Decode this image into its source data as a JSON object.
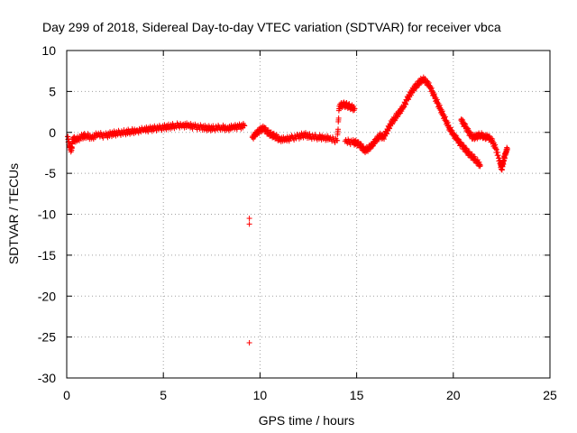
{
  "chart_data": {
    "type": "scatter",
    "title": "Day 299 of 2018, Sidereal Day-to-day VTEC variation (SDTVAR) for receiver vbca",
    "xlabel": "GPS time / hours",
    "ylabel": "SDTVAR / TECUs",
    "xlim": [
      0,
      25
    ],
    "ylim": [
      -30,
      10
    ],
    "x_ticks": [
      0,
      5,
      10,
      15,
      20,
      25
    ],
    "y_ticks": [
      10,
      5,
      0,
      -5,
      -10,
      -15,
      -20,
      -25,
      -30
    ],
    "grid": true,
    "marker": "+",
    "series_color": "#ff0000",
    "series": [
      {
        "name": "SDTVAR",
        "points": [
          [
            0.05,
            -0.5
          ],
          [
            0.15,
            -1.8
          ],
          [
            0.25,
            -2.2
          ],
          [
            0.3,
            -0.8
          ],
          [
            0.5,
            -0.9
          ],
          [
            0.8,
            -0.5
          ],
          [
            1.0,
            -0.4
          ],
          [
            1.3,
            -0.6
          ],
          [
            1.6,
            -0.3
          ],
          [
            2.0,
            -0.4
          ],
          [
            2.3,
            -0.2
          ],
          [
            2.6,
            -0.1
          ],
          [
            3.0,
            0.0
          ],
          [
            3.3,
            0.1
          ],
          [
            3.6,
            0.2
          ],
          [
            4.0,
            0.3
          ],
          [
            4.3,
            0.4
          ],
          [
            4.6,
            0.5
          ],
          [
            5.0,
            0.6
          ],
          [
            5.3,
            0.7
          ],
          [
            5.6,
            0.8
          ],
          [
            6.0,
            0.9
          ],
          [
            6.3,
            0.8
          ],
          [
            6.6,
            0.7
          ],
          [
            7.0,
            0.6
          ],
          [
            7.3,
            0.5
          ],
          [
            7.6,
            0.5
          ],
          [
            8.0,
            0.6
          ],
          [
            8.3,
            0.5
          ],
          [
            8.6,
            0.6
          ],
          [
            8.9,
            0.7
          ],
          [
            9.2,
            0.8
          ],
          [
            9.45,
            -10.5
          ],
          [
            9.45,
            -11.2
          ],
          [
            9.45,
            -25.7
          ],
          [
            9.6,
            -0.6
          ],
          [
            9.8,
            -0.2
          ],
          [
            10.0,
            0.3
          ],
          [
            10.2,
            0.5
          ],
          [
            10.4,
            0.0
          ],
          [
            10.6,
            -0.3
          ],
          [
            10.8,
            -0.5
          ],
          [
            11.0,
            -0.8
          ],
          [
            11.3,
            -0.9
          ],
          [
            11.6,
            -0.7
          ],
          [
            12.0,
            -0.5
          ],
          [
            12.3,
            -0.3
          ],
          [
            12.6,
            -0.5
          ],
          [
            13.0,
            -0.6
          ],
          [
            13.3,
            -0.6
          ],
          [
            13.6,
            -0.8
          ],
          [
            14.0,
            -1.0
          ],
          [
            14.1,
            3.2
          ],
          [
            14.3,
            3.4
          ],
          [
            14.5,
            3.3
          ],
          [
            14.7,
            3.1
          ],
          [
            14.9,
            2.9
          ],
          [
            14.4,
            -1.1
          ],
          [
            14.8,
            -1.2
          ],
          [
            15.0,
            -1.3
          ],
          [
            15.2,
            -1.6
          ],
          [
            15.4,
            -2.2
          ],
          [
            15.6,
            -2.0
          ],
          [
            15.8,
            -1.5
          ],
          [
            16.0,
            -1.0
          ],
          [
            16.2,
            -0.4
          ],
          [
            16.4,
            -0.6
          ],
          [
            16.6,
            0.3
          ],
          [
            16.8,
            1.2
          ],
          [
            17.0,
            1.8
          ],
          [
            17.2,
            2.5
          ],
          [
            17.4,
            3.0
          ],
          [
            17.6,
            4.0
          ],
          [
            17.8,
            4.8
          ],
          [
            18.0,
            5.5
          ],
          [
            18.2,
            6.0
          ],
          [
            18.4,
            6.5
          ],
          [
            18.6,
            6.3
          ],
          [
            18.8,
            5.5
          ],
          [
            19.0,
            4.5
          ],
          [
            19.2,
            3.5
          ],
          [
            19.4,
            2.5
          ],
          [
            19.6,
            1.5
          ],
          [
            19.8,
            0.5
          ],
          [
            20.0,
            -0.2
          ],
          [
            20.2,
            -0.9
          ],
          [
            20.4,
            -1.5
          ],
          [
            20.6,
            -2.0
          ],
          [
            20.8,
            -2.6
          ],
          [
            21.0,
            -3.0
          ],
          [
            21.2,
            -3.5
          ],
          [
            21.4,
            -4.0
          ],
          [
            20.4,
            1.5
          ],
          [
            20.6,
            0.8
          ],
          [
            20.8,
            0.0
          ],
          [
            21.0,
            -0.6
          ],
          [
            21.2,
            -0.5
          ],
          [
            21.4,
            -0.3
          ],
          [
            21.6,
            -0.5
          ],
          [
            21.8,
            -0.6
          ],
          [
            22.0,
            -1.0
          ],
          [
            22.2,
            -2.0
          ],
          [
            22.4,
            -3.5
          ],
          [
            22.5,
            -4.5
          ],
          [
            22.6,
            -3.5
          ],
          [
            22.7,
            -2.5
          ],
          [
            22.8,
            -2.0
          ]
        ]
      }
    ]
  }
}
